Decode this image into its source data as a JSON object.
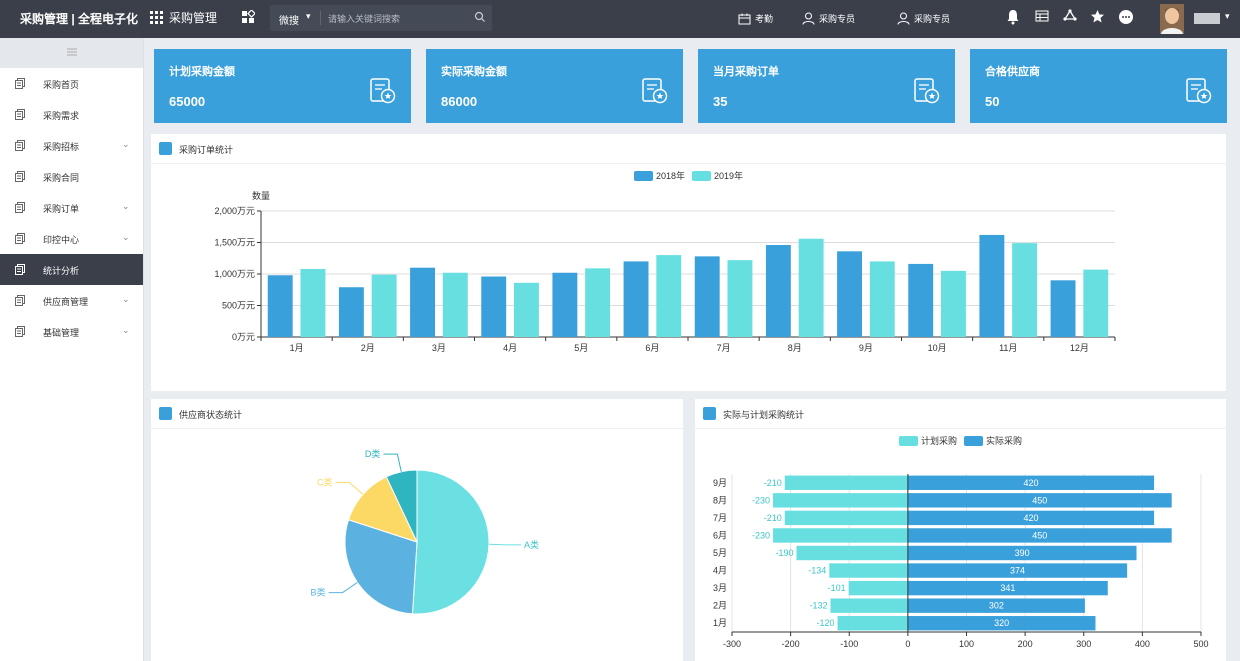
{
  "topbar": {
    "brand": "采购管理 | 全程电子化",
    "module": "采购管理",
    "search_scope": "微搜",
    "search_placeholder": "请输入关键词搜索",
    "links": [
      "考勤",
      "采购专员",
      "采购专员"
    ],
    "icons": [
      "bell-icon",
      "table-icon",
      "recycle-icon",
      "star-icon",
      "chat-icon"
    ]
  },
  "sidebar": {
    "items": [
      {
        "label": "采购首页",
        "expandable": false,
        "active": false
      },
      {
        "label": "采购需求",
        "expandable": false,
        "active": false
      },
      {
        "label": "采购招标",
        "expandable": true,
        "active": false
      },
      {
        "label": "采购合同",
        "expandable": false,
        "active": false
      },
      {
        "label": "采购订单",
        "expandable": true,
        "active": false
      },
      {
        "label": "印控中心",
        "expandable": true,
        "active": false
      },
      {
        "label": "统计分析",
        "expandable": false,
        "active": true
      },
      {
        "label": "供应商管理",
        "expandable": true,
        "active": false
      },
      {
        "label": "基础管理",
        "expandable": true,
        "active": false
      }
    ]
  },
  "cards": [
    {
      "title": "计划采购金额",
      "value": "65000"
    },
    {
      "title": "实际采购金额",
      "value": "86000"
    },
    {
      "title": "当月采购订单",
      "value": "35"
    },
    {
      "title": "合格供应商",
      "value": "50"
    }
  ],
  "colors": {
    "accent": "#3aa0dc",
    "series_dark": "#3aa0dc",
    "series_light": "#67dfe0",
    "pie_c": "#fcd965",
    "pie_d": "#2fb5c0",
    "pie_b": "#5bb2e0",
    "pie_a": "#6ae0e2"
  },
  "panels": {
    "bar": {
      "title": "采购订单统计"
    },
    "pie": {
      "title": "供应商状态统计"
    },
    "hbar": {
      "title": "实际与计划采购统计"
    }
  },
  "chart_data": [
    {
      "type": "bar",
      "title": "",
      "ylabel": "数量",
      "categories": [
        "1月",
        "2月",
        "3月",
        "4月",
        "5月",
        "6月",
        "7月",
        "8月",
        "9月",
        "10月",
        "11月",
        "12月"
      ],
      "series": [
        {
          "name": "2018年",
          "values": [
            980,
            790,
            1100,
            960,
            1020,
            1200,
            1280,
            1460,
            1360,
            1160,
            1620,
            900
          ]
        },
        {
          "name": "2019年",
          "values": [
            1080,
            990,
            1020,
            860,
            1090,
            1300,
            1220,
            1560,
            1200,
            1050,
            1490,
            1070
          ]
        }
      ],
      "ylim": [
        0,
        2000
      ],
      "yticks": [
        "0万元",
        "500万元",
        "1,000万元",
        "1,500万元",
        "2,000万元"
      ],
      "grid": true,
      "legend": "top-center"
    },
    {
      "type": "pie",
      "labels": [
        "A类",
        "B类",
        "C类",
        "D类"
      ],
      "values": [
        51,
        29,
        13,
        7
      ]
    },
    {
      "type": "bar",
      "orientation": "horizontal",
      "categories": [
        "1月",
        "2月",
        "3月",
        "4月",
        "5月",
        "6月",
        "7月",
        "8月",
        "9月"
      ],
      "series": [
        {
          "name": "计划采购",
          "values": [
            -120,
            -132,
            -101,
            -134,
            -190,
            -230,
            -210,
            -230,
            -210
          ]
        },
        {
          "name": "实际采购",
          "values": [
            320,
            302,
            341,
            374,
            390,
            450,
            420,
            450,
            420
          ]
        }
      ],
      "xlim": [
        -300,
        500
      ],
      "xticks": [
        "-300",
        "-200",
        "-100",
        "0",
        "100",
        "200",
        "300",
        "400",
        "500"
      ],
      "grid": true,
      "legend": "top-center"
    }
  ]
}
